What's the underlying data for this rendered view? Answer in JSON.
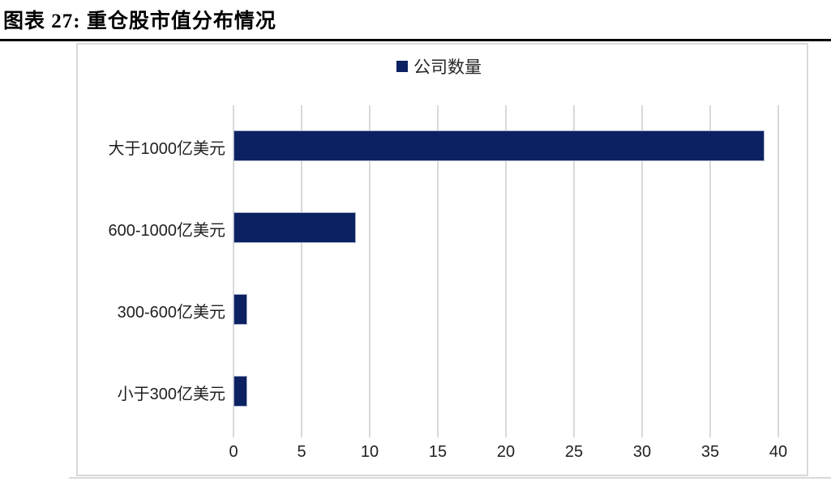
{
  "figure": {
    "title": "图表 27: 重仓股市值分布情况"
  },
  "chart_data": {
    "type": "bar",
    "orientation": "horizontal",
    "legend": [
      "公司数量"
    ],
    "legend_position": "top-center",
    "categories": [
      "大于1000亿美元",
      "600-1000亿美元",
      "300-600亿美元",
      "小于300亿美元"
    ],
    "values": [
      39,
      9,
      1,
      1
    ],
    "xlabel": "",
    "ylabel": "",
    "xlim": [
      0,
      40
    ],
    "xticks": [
      0,
      5,
      10,
      15,
      20,
      25,
      30,
      35,
      40
    ],
    "grid": true,
    "colors": {
      "bar": "#0b2161",
      "gridline": "#d9d9d9",
      "chart_border": "#d9d9d9",
      "text": "#1f1f1f",
      "title_rule": "#000000"
    }
  }
}
